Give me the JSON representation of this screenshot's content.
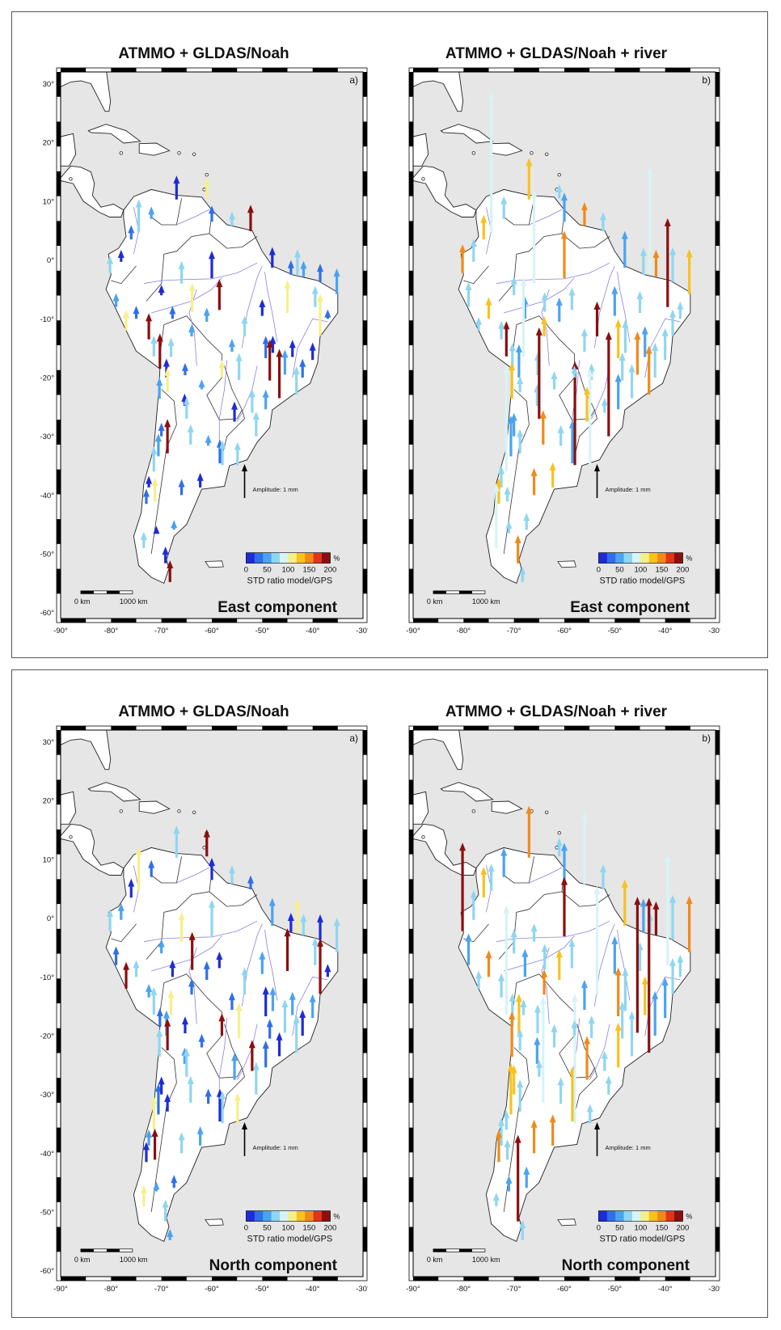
{
  "sections": [
    {
      "id": "east",
      "panels": [
        {
          "title": "ATMMO + GLDAS/Noah",
          "letter": "a)",
          "component": "East component",
          "arrow_color": "#4a90e2",
          "lat_side": "left"
        },
        {
          "title": "ATMMO + GLDAS/Noah + river",
          "letter": "b)",
          "component": "East component",
          "arrow_color": "#8fd6f0",
          "lat_side": "right"
        }
      ]
    },
    {
      "id": "north",
      "panels": [
        {
          "title": "ATMMO + GLDAS/Noah",
          "letter": "a)",
          "component": "North component",
          "arrow_color": "#4a90e2",
          "lat_side": "left"
        },
        {
          "title": "ATMMO + GLDAS/Noah + river",
          "letter": "b)",
          "component": "North component",
          "arrow_color": "#8fd6f0",
          "lat_side": "right"
        }
      ]
    }
  ],
  "axes": {
    "lat_ticks": [
      "30°",
      "20°",
      "10°",
      "0°",
      "-10°",
      "-20°",
      "-30°",
      "-40°",
      "-50°",
      "-60°"
    ],
    "lon_ticks": [
      "-90°",
      "-80°",
      "-70°",
      "-60°",
      "-50°",
      "-40°",
      "-30°"
    ]
  },
  "legend": {
    "amplitude_label": "Amplitude: 1 mm",
    "colorbar_unit": "%",
    "colorbar_ticks": [
      "0",
      "50",
      "100",
      "150",
      "200"
    ],
    "colorbar_label": "STD ratio model/GPS",
    "colorbar_colors": [
      "#1f2bd6",
      "#2f6fe8",
      "#4aa3f0",
      "#8fd6f0",
      "#d8f3f6",
      "#f6f08a",
      "#f7c21e",
      "#f08a1a",
      "#e0341b",
      "#8a0f0f"
    ]
  },
  "scalebar": {
    "start": "0 km",
    "end": "1000 km"
  },
  "colors": {
    "ocean": "#e6e6e6",
    "land": "#ffffff",
    "river": "#8a80e6",
    "coast": "#222222"
  }
}
